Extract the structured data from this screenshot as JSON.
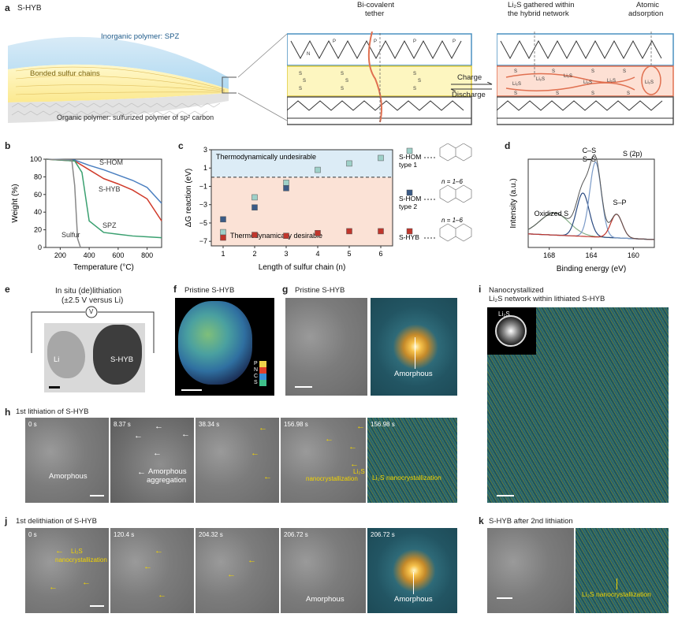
{
  "panels": {
    "a": {
      "label": "a",
      "title": "S-HYB",
      "inorganic": "Inorganic polymer: SPZ",
      "bonded": "Bonded sulfur chains",
      "organic": "Organic polymer: sulfurized polymer of sp² carbon",
      "tether_l1": "Bi-covalent",
      "tether_l2": "tether",
      "gathered_l1": "Li₂S gathered within",
      "gathered_l2": "the hybrid network",
      "atomic_l1": "Atomic",
      "atomic_l2": "adsorption",
      "charge": "Charge",
      "discharge": "Discharge"
    },
    "b": {
      "label": "b",
      "ylabel": "Weight (%)",
      "xlabel": "Temperature (°C)",
      "series_labels": [
        "S-HOM",
        "S-HYB",
        "SPZ",
        "Sulfur"
      ],
      "yticks": [
        "100",
        "80",
        "60",
        "40",
        "20",
        "0"
      ],
      "xticks": [
        "200",
        "400",
        "600",
        "800"
      ]
    },
    "c": {
      "label": "c",
      "ylabel": "ΔG reaction (eV)",
      "xlabel": "Length of sulfur chain (n)",
      "undesirable": "Thermodynamically undesirable",
      "desirable": "Thermodynamically desirable",
      "yticks": [
        "3",
        "1",
        "−1",
        "−3",
        "−5",
        "−7"
      ],
      "xticks": [
        "1",
        "2",
        "3",
        "4",
        "5",
        "6"
      ],
      "legend": [
        {
          "name": "S-HOM type 1",
          "n": "n = 1–6"
        },
        {
          "name": "S-HOM type 2",
          "n": "n = 1–6"
        },
        {
          "name": "S-HYB",
          "n": "n = 1–6"
        }
      ]
    },
    "d": {
      "label": "d",
      "ylabel": "Intensity (a.u.)",
      "xlabel": "Binding energy (eV)",
      "title": "S (2p)",
      "peaks": [
        "C–S",
        "S–S",
        "S–P",
        "Oxidized S"
      ],
      "xticks": [
        "168",
        "164",
        "160"
      ]
    },
    "e": {
      "label": "e",
      "title_l1": "In situ (de)lithiation",
      "title_l2": "(±2.5 V versus Li)",
      "v": "V",
      "li": "Li",
      "shyb": "S-HYB"
    },
    "f": {
      "label": "f",
      "title": "Pristine S-HYB",
      "legend": [
        "P",
        "N",
        "C",
        "S"
      ]
    },
    "g": {
      "label": "g",
      "title": "Pristine S-HYB",
      "amorphous": "Amorphous"
    },
    "h": {
      "label": "h",
      "title": "1st lithiation of S-HYB",
      "times": [
        "0 s",
        "8.37 s",
        "38.34 s",
        "156.98 s",
        "156.98 s"
      ],
      "amorphous": "Amorphous",
      "aggregation_l1": "Amorphous",
      "aggregation_l2": "aggregation",
      "nano_l1": "Li₂S",
      "nano_l2": "nanocrystallization",
      "fft_label": "Li₂S nanocrystallization"
    },
    "i": {
      "label": "i",
      "title_l1": "Nanocrystallized",
      "title_l2": "Li₂S network within lithiated S-HYB",
      "inset": "Li₂S"
    },
    "j": {
      "label": "j",
      "title": "1st delithiation of S-HYB",
      "times": [
        "0 s",
        "120.4 s",
        "204.32 s",
        "206.72 s",
        "206.72 s"
      ],
      "nano_l1": "Li₂S",
      "nano_l2": "nanocrystallization",
      "amorphous": "Amorphous",
      "fft_amorphous": "Amorphous"
    },
    "k": {
      "label": "k",
      "title": "S-HYB after 2nd lithiation",
      "fft_label": "Li₂S nanocrystallization"
    }
  },
  "chart_data": [
    {
      "type": "line",
      "panel": "b",
      "xlabel": "Temperature (°C)",
      "ylabel": "Weight (%)",
      "xlim": [
        100,
        900
      ],
      "ylim": [
        0,
        100
      ],
      "series": [
        {
          "name": "S-HOM",
          "x": [
            100,
            300,
            400,
            500,
            600,
            700,
            800,
            900
          ],
          "values": [
            100,
            99,
            93,
            88,
            82,
            76,
            68,
            50
          ]
        },
        {
          "name": "S-HYB",
          "x": [
            100,
            300,
            400,
            500,
            600,
            700,
            800,
            900
          ],
          "values": [
            100,
            98,
            88,
            78,
            72,
            65,
            55,
            30
          ]
        },
        {
          "name": "SPZ",
          "x": [
            100,
            300,
            350,
            400,
            500,
            600,
            700,
            800,
            900
          ],
          "values": [
            100,
            98,
            85,
            30,
            17,
            15,
            13,
            12,
            11
          ]
        },
        {
          "name": "Sulfur",
          "x": [
            100,
            280,
            300,
            320,
            340
          ],
          "values": [
            100,
            99,
            70,
            10,
            0
          ]
        }
      ]
    },
    {
      "type": "scatter",
      "panel": "c",
      "xlabel": "Length of sulfur chain (n)",
      "ylabel": "ΔG reaction (eV)",
      "x": [
        1,
        2,
        3,
        4,
        5,
        6
      ],
      "ylim": [
        -7.5,
        3
      ],
      "series": [
        {
          "name": "S-HOM type 1",
          "values": [
            -6.0,
            -2.2,
            -0.6,
            0.8,
            1.5,
            2.1
          ]
        },
        {
          "name": "S-HOM type 2",
          "values": [
            -4.6,
            -3.3,
            -1.2,
            null,
            null,
            null
          ]
        },
        {
          "name": "S-HYB",
          "values": [
            -6.6,
            -6.3,
            -6.4,
            -6.1,
            -5.9,
            -5.9
          ]
        }
      ]
    },
    {
      "type": "line",
      "panel": "d",
      "xlabel": "Binding energy (eV)",
      "ylabel": "Intensity (a.u.)",
      "xlim": [
        170,
        158
      ],
      "peaks": [
        {
          "name": "Oxidized S",
          "center": 167.5
        },
        {
          "name": "C–S",
          "center": 164.8
        },
        {
          "name": "S–S",
          "center": 163.6
        },
        {
          "name": "S–P",
          "center": 161.6
        }
      ]
    }
  ]
}
